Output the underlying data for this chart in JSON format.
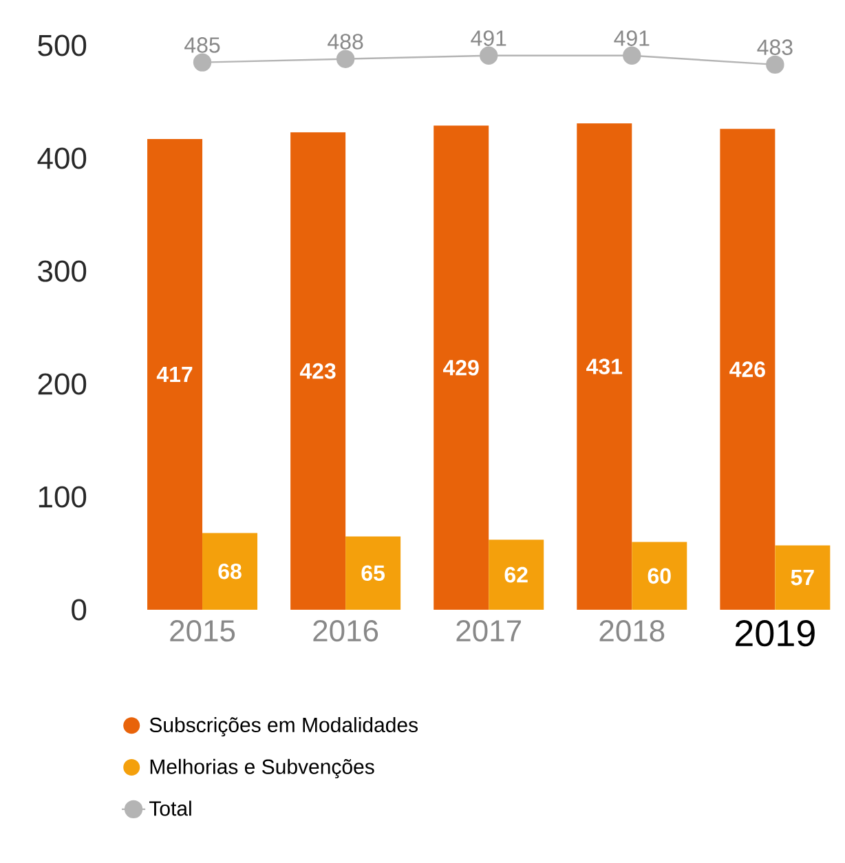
{
  "chart_data": {
    "type": "bar",
    "categories": [
      "2015",
      "2016",
      "2017",
      "2018",
      "2019"
    ],
    "series": [
      {
        "name": "Subscrições em Modalidades",
        "color": "#e8630a",
        "values": [
          417,
          423,
          429,
          431,
          426
        ]
      },
      {
        "name": "Melhorias e Subvenções",
        "color": "#f4a00c",
        "values": [
          68,
          65,
          62,
          60,
          57
        ]
      },
      {
        "name": "Total",
        "type": "line",
        "color": "#b4b4b4",
        "values": [
          485,
          488,
          491,
          491,
          483
        ]
      }
    ],
    "ylim": [
      0,
      500
    ],
    "yticks": [
      0,
      100,
      200,
      300,
      400,
      500
    ],
    "data_labels": true,
    "legend": "bottom left",
    "marker": "circle"
  }
}
